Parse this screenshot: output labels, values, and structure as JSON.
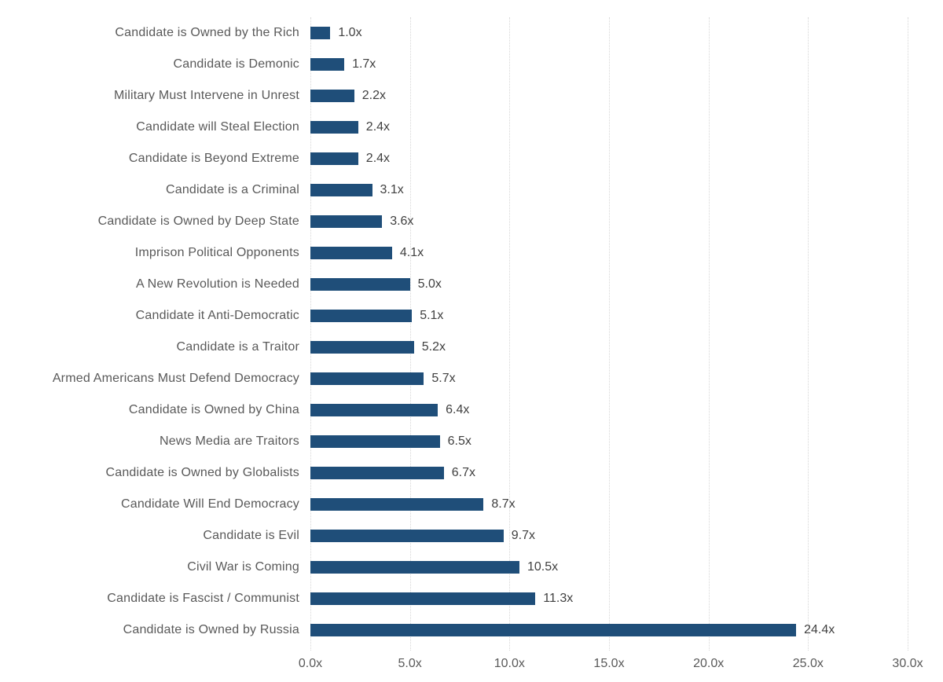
{
  "chart_data": {
    "type": "bar",
    "orientation": "horizontal",
    "title": "",
    "xlabel": "",
    "ylabel": "",
    "xlim": [
      0,
      30
    ],
    "grid": true,
    "legend": false,
    "x_tick_values": [
      0,
      5,
      10,
      15,
      20,
      25,
      30
    ],
    "x_tick_labels": [
      "0.0x",
      "5.0x",
      "10.0x",
      "15.0x",
      "20.0x",
      "25.0x",
      "30.0x"
    ],
    "categories": [
      "Candidate is Owned by the Rich",
      "Candidate is Demonic",
      "Military Must Intervene in Unrest",
      "Candidate will Steal Election",
      "Candidate is Beyond Extreme",
      "Candidate is a Criminal",
      "Candidate is Owned by Deep State",
      "Imprison Political Opponents",
      "A New Revolution is Needed",
      "Candidate it Anti-Democratic",
      "Candidate is a Traitor",
      "Armed Americans Must Defend Democracy",
      "Candidate is Owned by China",
      "News Media are Traitors",
      "Candidate is Owned by Globalists",
      "Candidate Will End Democracy",
      "Candidate is Evil",
      "Civil War is Coming",
      "Candidate is Fascist / Communist",
      "Candidate is Owned by Russia"
    ],
    "values": [
      1.0,
      1.7,
      2.2,
      2.4,
      2.4,
      3.1,
      3.6,
      4.1,
      5.0,
      5.1,
      5.2,
      5.7,
      6.4,
      6.5,
      6.7,
      8.7,
      9.7,
      10.5,
      11.3,
      24.4
    ],
    "value_labels": [
      "1.0x",
      "1.7x",
      "2.2x",
      "2.4x",
      "2.4x",
      "3.1x",
      "3.6x",
      "4.1x",
      "5.0x",
      "5.1x",
      "5.2x",
      "5.7x",
      "6.4x",
      "6.5x",
      "6.7x",
      "8.7x",
      "9.7x",
      "10.5x",
      "11.3x",
      "24.4x"
    ]
  },
  "colors": {
    "bar": "#1F4E79",
    "category_label": "#595959",
    "value_label": "#404040",
    "tick_label": "#595959",
    "gridline": "#D6D6D6",
    "background": "#FFFFFF"
  }
}
